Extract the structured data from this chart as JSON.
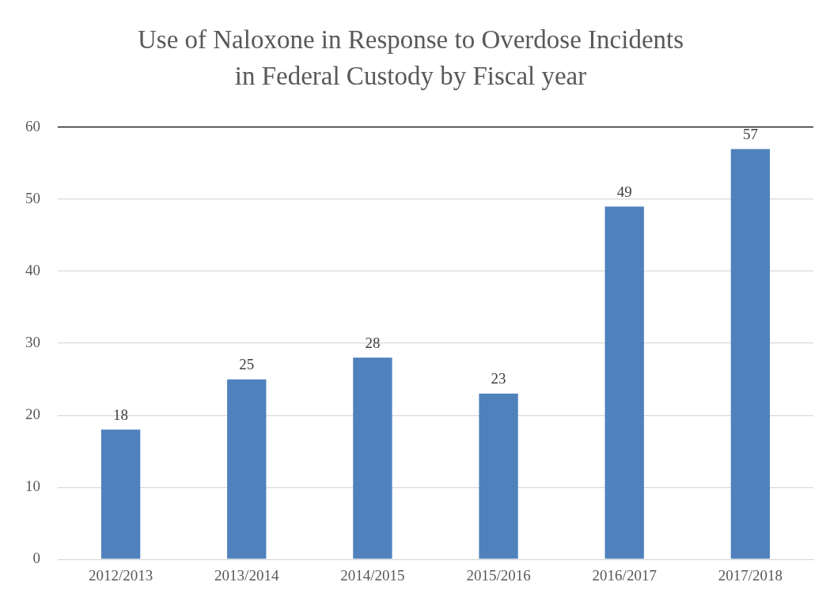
{
  "chart_data": {
    "type": "bar",
    "title": "Use of Naloxone in Response to Overdose Incidents\nin Federal Custody by Fiscal year",
    "categories": [
      "2012/2013",
      "2013/2014",
      "2014/2015",
      "2015/2016",
      "2016/2017",
      "2017/2018"
    ],
    "values": [
      18,
      25,
      28,
      23,
      49,
      57
    ],
    "color": "#4f81bd",
    "ylim": [
      0,
      60
    ],
    "yticks": [
      0,
      10,
      20,
      30,
      40,
      50,
      60
    ],
    "grid": "y",
    "data_labels": true,
    "legend": false
  }
}
